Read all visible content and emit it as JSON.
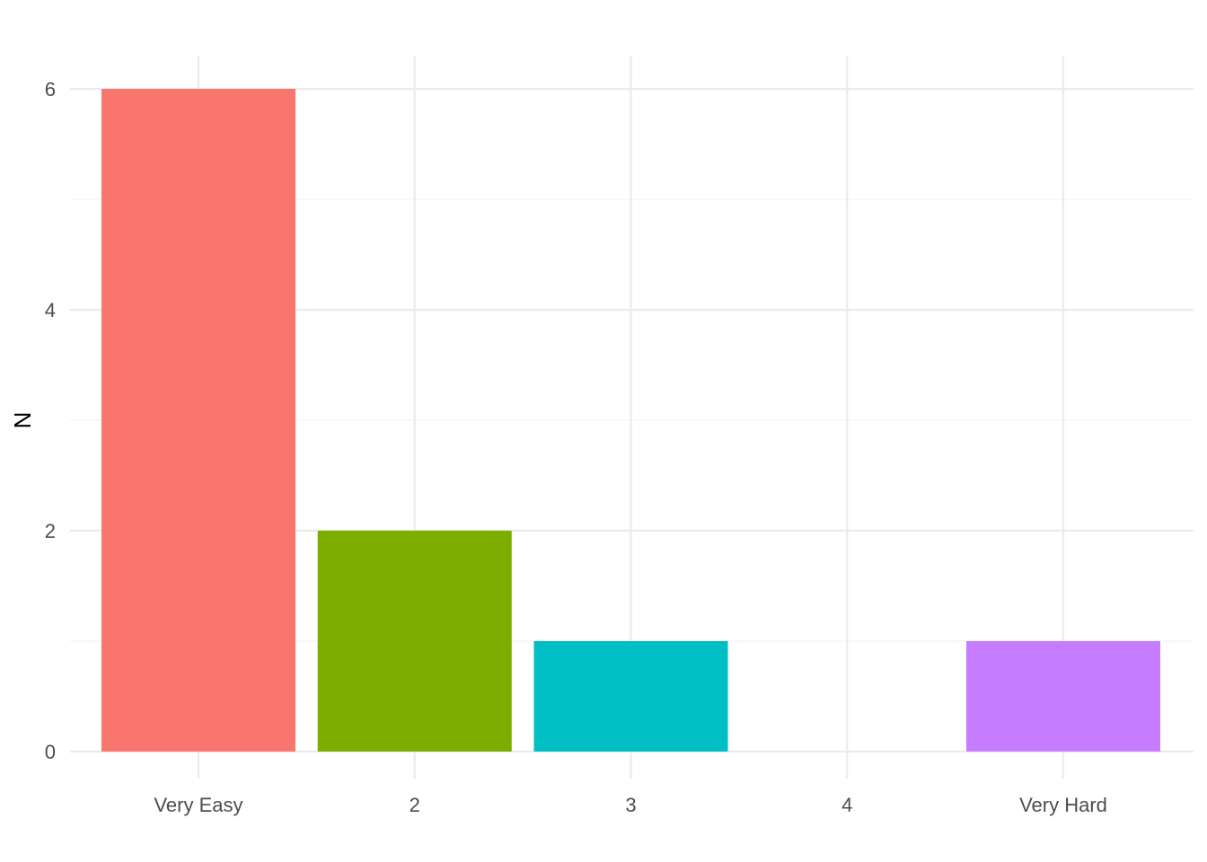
{
  "chart_data": {
    "type": "bar",
    "categories": [
      "Very Easy",
      "2",
      "3",
      "4",
      "Very Hard"
    ],
    "values": [
      6,
      2,
      1,
      0,
      1
    ],
    "colors": [
      "#F8766D",
      "#7CAE00",
      "#00BFC4",
      "#C77CFF",
      "#C77CFF"
    ],
    "title": "",
    "xlabel": "",
    "ylabel": "N",
    "ylim": [
      0,
      6
    ],
    "yticks": [
      "0",
      "2",
      "4",
      "6"
    ],
    "grid": true,
    "legend": "none"
  }
}
